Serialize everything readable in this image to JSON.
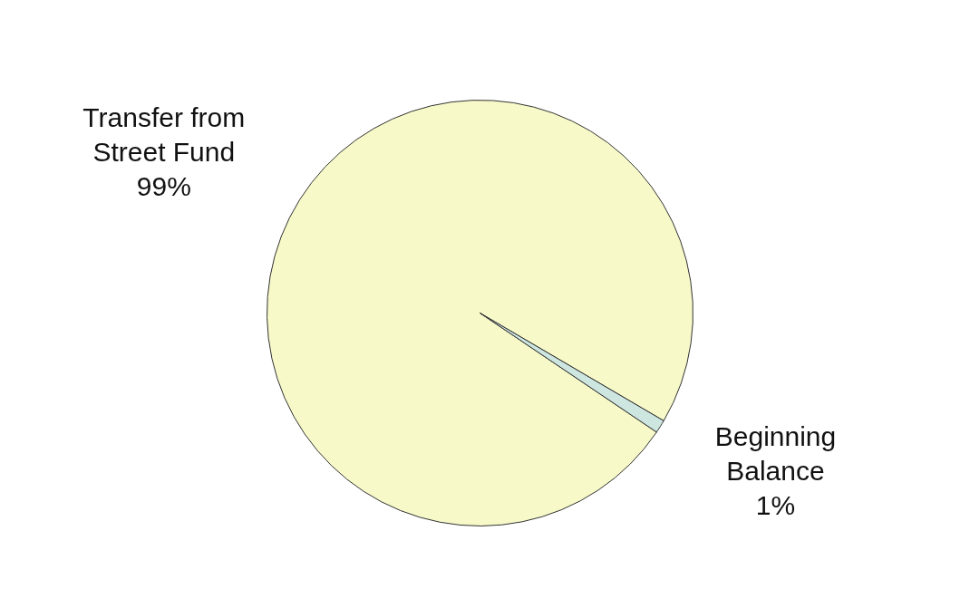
{
  "chart_data": {
    "type": "pie",
    "categories": [
      "Transfer from Street Fund",
      "Beginning Balance"
    ],
    "values": [
      99,
      1
    ],
    "colors": [
      "#f7f9c9",
      "#cde6df"
    ],
    "value_labels": [
      "99%",
      "1%"
    ],
    "legend": false
  }
}
